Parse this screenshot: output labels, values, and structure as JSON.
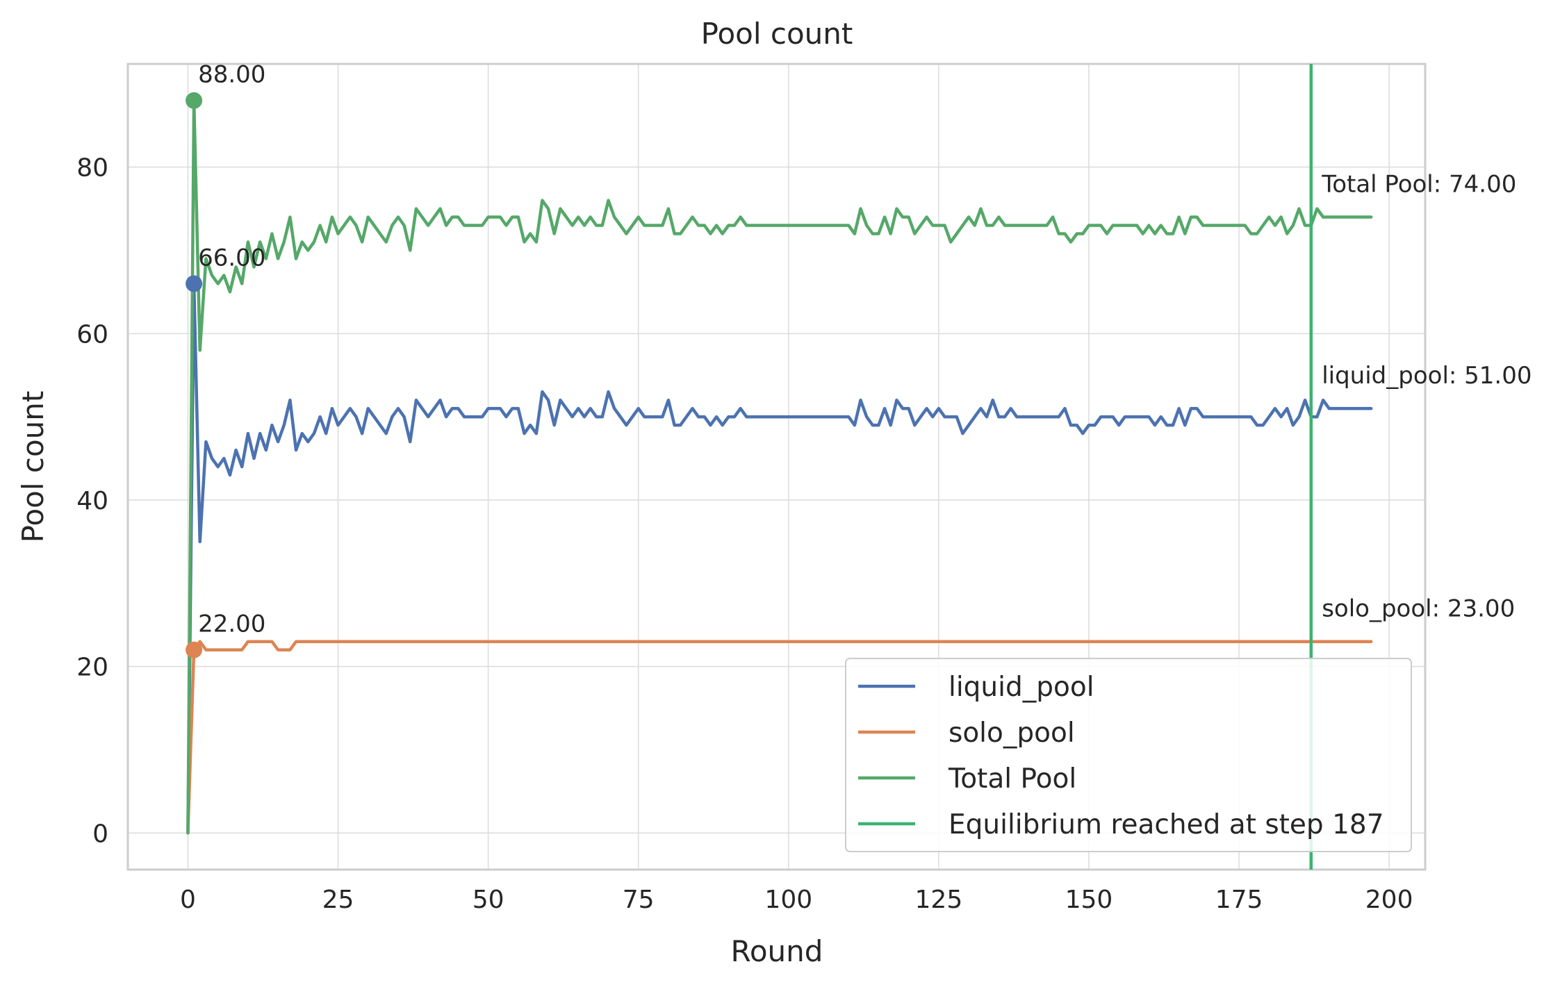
{
  "chart_data": {
    "type": "line",
    "title": "Pool count",
    "xlabel": "Round",
    "ylabel": "Pool count",
    "xlim": [
      -10,
      206
    ],
    "ylim": [
      -4.4,
      92.4
    ],
    "xticks": [
      0,
      25,
      50,
      75,
      100,
      125,
      150,
      175,
      200
    ],
    "yticks": [
      0,
      20,
      40,
      60,
      80
    ],
    "grid": true,
    "legend_position": "lower-right",
    "series": [
      {
        "name": "liquid_pool",
        "color": "#4c72b0",
        "x": [
          0,
          1,
          2,
          3,
          4,
          5,
          6,
          7,
          8,
          9,
          10,
          11,
          12,
          13,
          14,
          15,
          16,
          17,
          18,
          19,
          20,
          21,
          22,
          23,
          24,
          25,
          26,
          27,
          28,
          29,
          30,
          31,
          32,
          33,
          34,
          35,
          36,
          37,
          38,
          39,
          40,
          41,
          42,
          43,
          44,
          45,
          46,
          47,
          48,
          49,
          50,
          51,
          52,
          53,
          54,
          55,
          56,
          57,
          58,
          59,
          60,
          61,
          62,
          63,
          64,
          65,
          66,
          67,
          68,
          69,
          70,
          71,
          72,
          73,
          74,
          75,
          76,
          77,
          78,
          79,
          80,
          81,
          82,
          83,
          84,
          85,
          86,
          87,
          88,
          89,
          90,
          91,
          92,
          93,
          94,
          95,
          96,
          97,
          98,
          99,
          100,
          101,
          102,
          103,
          104,
          105,
          106,
          107,
          108,
          109,
          110,
          111,
          112,
          113,
          114,
          115,
          116,
          117,
          118,
          119,
          120,
          121,
          122,
          123,
          124,
          125,
          126,
          127,
          128,
          129,
          130,
          131,
          132,
          133,
          134,
          135,
          136,
          137,
          138,
          139,
          140,
          141,
          142,
          143,
          144,
          145,
          146,
          147,
          148,
          149,
          150,
          151,
          152,
          153,
          154,
          155,
          156,
          157,
          158,
          159,
          160,
          161,
          162,
          163,
          164,
          165,
          166,
          167,
          168,
          169,
          170,
          171,
          172,
          173,
          174,
          175,
          176,
          177,
          178,
          179,
          180,
          181,
          182,
          183,
          184,
          185,
          186,
          187,
          188,
          189,
          190,
          191,
          192,
          193,
          194,
          195,
          196,
          197
        ],
        "values": [
          0,
          66,
          35,
          47,
          45,
          44,
          45,
          43,
          46,
          44,
          48,
          45,
          48,
          46,
          49,
          47,
          49,
          52,
          46,
          48,
          47,
          48,
          50,
          48,
          51,
          49,
          50,
          51,
          50,
          48,
          51,
          50,
          49,
          48,
          50,
          51,
          50,
          47,
          52,
          51,
          50,
          51,
          52,
          50,
          51,
          51,
          50,
          50,
          50,
          50,
          51,
          51,
          51,
          50,
          51,
          51,
          48,
          49,
          48,
          53,
          52,
          49,
          52,
          51,
          50,
          51,
          50,
          51,
          50,
          50,
          53,
          51,
          50,
          49,
          50,
          51,
          50,
          50,
          50,
          50,
          52,
          49,
          49,
          50,
          51,
          50,
          50,
          49,
          50,
          49,
          50,
          50,
          51,
          50,
          50,
          50,
          50,
          50,
          50,
          50,
          50,
          50,
          50,
          50,
          50,
          50,
          50,
          50,
          50,
          50,
          50,
          49,
          52,
          50,
          49,
          49,
          51,
          49,
          52,
          51,
          51,
          49,
          50,
          51,
          50,
          51,
          50,
          50,
          50,
          48,
          49,
          50,
          51,
          50,
          52,
          50,
          50,
          51,
          50,
          50,
          50,
          50,
          50,
          50,
          50,
          50,
          51,
          49,
          49,
          48,
          49,
          49,
          50,
          50,
          50,
          49,
          50,
          50,
          50,
          50,
          50,
          49,
          50,
          49,
          49,
          51,
          49,
          51,
          51,
          50,
          50,
          50,
          50,
          50,
          50,
          50,
          50,
          50,
          49,
          49,
          50,
          51,
          50,
          51,
          49,
          50,
          52,
          50,
          50,
          52,
          51,
          51,
          51,
          51,
          51,
          51,
          51,
          51
        ]
      },
      {
        "name": "solo_pool",
        "color": "#dd8452",
        "x": [
          0,
          1,
          2,
          3,
          4,
          5,
          6,
          7,
          8,
          9,
          10,
          11,
          12,
          13,
          14,
          15,
          16,
          17,
          18,
          197
        ],
        "values": [
          0,
          22,
          23,
          22,
          22,
          22,
          22,
          22,
          22,
          22,
          23,
          23,
          23,
          23,
          23,
          22,
          22,
          22,
          23,
          23
        ]
      },
      {
        "name": "Total Pool",
        "color": "#55a868",
        "x": [
          0,
          1,
          2,
          3,
          4,
          5,
          6,
          7,
          8,
          9,
          10,
          11,
          12,
          13,
          14,
          15,
          16,
          17,
          18,
          19,
          20,
          21,
          22,
          23,
          24,
          25,
          26,
          27,
          28,
          29,
          30,
          31,
          32,
          33,
          34,
          35,
          36,
          37,
          38,
          39,
          40,
          41,
          42,
          43,
          44,
          45,
          46,
          47,
          48,
          49,
          50,
          51,
          52,
          53,
          54,
          55,
          56,
          57,
          58,
          59,
          60,
          61,
          62,
          63,
          64,
          65,
          66,
          67,
          68,
          69,
          70,
          71,
          72,
          73,
          74,
          75,
          76,
          77,
          78,
          79,
          80,
          81,
          82,
          83,
          84,
          85,
          86,
          87,
          88,
          89,
          90,
          91,
          92,
          93,
          94,
          95,
          96,
          97,
          98,
          99,
          100,
          101,
          102,
          103,
          104,
          105,
          106,
          107,
          108,
          109,
          110,
          111,
          112,
          113,
          114,
          115,
          116,
          117,
          118,
          119,
          120,
          121,
          122,
          123,
          124,
          125,
          126,
          127,
          128,
          129,
          130,
          131,
          132,
          133,
          134,
          135,
          136,
          137,
          138,
          139,
          140,
          141,
          142,
          143,
          144,
          145,
          146,
          147,
          148,
          149,
          150,
          151,
          152,
          153,
          154,
          155,
          156,
          157,
          158,
          159,
          160,
          161,
          162,
          163,
          164,
          165,
          166,
          167,
          168,
          169,
          170,
          171,
          172,
          173,
          174,
          175,
          176,
          177,
          178,
          179,
          180,
          181,
          182,
          183,
          184,
          185,
          186,
          187,
          188,
          189,
          190,
          191,
          192,
          193,
          194,
          195,
          196,
          197
        ],
        "values": [
          0,
          88,
          58,
          69,
          67,
          66,
          67,
          65,
          68,
          66,
          71,
          68,
          71,
          69,
          72,
          69,
          71,
          74,
          69,
          71,
          70,
          71,
          73,
          71,
          74,
          72,
          73,
          74,
          73,
          71,
          74,
          73,
          72,
          71,
          73,
          74,
          73,
          70,
          75,
          74,
          73,
          74,
          75,
          73,
          74,
          74,
          73,
          73,
          73,
          73,
          74,
          74,
          74,
          73,
          74,
          74,
          71,
          72,
          71,
          76,
          75,
          72,
          75,
          74,
          73,
          74,
          73,
          74,
          73,
          73,
          76,
          74,
          73,
          72,
          73,
          74,
          73,
          73,
          73,
          73,
          75,
          72,
          72,
          73,
          74,
          73,
          73,
          72,
          73,
          72,
          73,
          73,
          74,
          73,
          73,
          73,
          73,
          73,
          73,
          73,
          73,
          73,
          73,
          73,
          73,
          73,
          73,
          73,
          73,
          73,
          73,
          72,
          75,
          73,
          72,
          72,
          74,
          72,
          75,
          74,
          74,
          72,
          73,
          74,
          73,
          73,
          73,
          71,
          72,
          73,
          74,
          73,
          75,
          73,
          73,
          74,
          73,
          73,
          73,
          73,
          73,
          73,
          73,
          73,
          74,
          72,
          72,
          71,
          72,
          72,
          73,
          73,
          73,
          72,
          73,
          73,
          73,
          73,
          73,
          72,
          73,
          72,
          73,
          72,
          72,
          74,
          72,
          74,
          74,
          73,
          73,
          73,
          73,
          73,
          73,
          73,
          73,
          72,
          72,
          73,
          74,
          73,
          74,
          72,
          73,
          75,
          73,
          73,
          75,
          74,
          74,
          74,
          74,
          74,
          74,
          74,
          74,
          74
        ]
      }
    ],
    "points": [
      {
        "x": 1,
        "y": 66,
        "label": "66.00",
        "color": "#4c72b0"
      },
      {
        "x": 1,
        "y": 22,
        "label": "22.00",
        "color": "#dd8452"
      },
      {
        "x": 1,
        "y": 88,
        "label": "88.00",
        "color": "#55a868"
      }
    ],
    "end_labels": [
      {
        "x": 197,
        "y": 74,
        "text": "Total Pool: 74.00"
      },
      {
        "x": 197,
        "y": 51,
        "text": "liquid_pool: 51.00"
      },
      {
        "x": 197,
        "y": 23,
        "text": "solo_pool: 23.00"
      }
    ],
    "vline": {
      "x": 187,
      "color": "#3cb371",
      "label": "Equilibrium reached at step 187"
    },
    "legend": [
      {
        "label": "liquid_pool",
        "color": "#4c72b0"
      },
      {
        "label": "solo_pool",
        "color": "#dd8452"
      },
      {
        "label": "Total Pool",
        "color": "#55a868"
      },
      {
        "label": "Equilibrium reached at step 187",
        "color": "#3cb371"
      }
    ]
  }
}
